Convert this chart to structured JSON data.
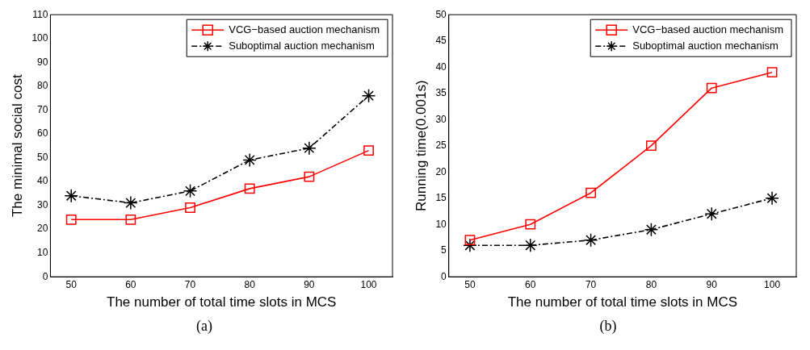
{
  "chart_data": [
    {
      "type": "line",
      "xlabel": "The number of total time slots in MCS",
      "ylabel": "The minimal social cost",
      "x": [
        50,
        60,
        70,
        80,
        90,
        100
      ],
      "xlim": [
        46.5,
        104
      ],
      "xticks": [
        50,
        60,
        70,
        80,
        90,
        100
      ],
      "ylim": [
        0,
        110
      ],
      "yticks": [
        0,
        10,
        20,
        30,
        40,
        50,
        60,
        70,
        80,
        90,
        100,
        110
      ],
      "legend": "top right",
      "grid": false,
      "annotations": [
        "(a)"
      ],
      "series": [
        {
          "name": "VCG−based auction mechanism",
          "color": "#ff0000",
          "marker": "square",
          "line_style": "solid",
          "values": [
            24,
            24,
            29,
            37,
            42,
            53
          ]
        },
        {
          "name": "Suboptimal auction mechanism",
          "color": "#000000",
          "marker": "cross",
          "line_style": "dashed",
          "values": [
            34,
            31,
            36,
            49,
            54,
            76
          ]
        }
      ]
    },
    {
      "type": "line",
      "xlabel": "The number of total time slots in MCS",
      "ylabel": "Running time(0.001s)",
      "x": [
        50,
        60,
        70,
        80,
        90,
        100
      ],
      "xlim": [
        46.5,
        104
      ],
      "xticks": [
        50,
        60,
        70,
        80,
        90,
        100
      ],
      "ylim": [
        0,
        50
      ],
      "yticks": [
        0,
        5,
        10,
        15,
        20,
        25,
        30,
        35,
        40,
        45,
        50
      ],
      "legend": "top right",
      "grid": false,
      "annotations": [
        "(b)"
      ],
      "series": [
        {
          "name": "VCG−based auction mechanism",
          "color": "#ff0000",
          "marker": "square",
          "line_style": "solid",
          "values": [
            7,
            10,
            16,
            25,
            36,
            39
          ]
        },
        {
          "name": "Suboptimal auction mechanism",
          "color": "#000000",
          "marker": "cross",
          "line_style": "dashed",
          "values": [
            6,
            6,
            7,
            9,
            12,
            15
          ]
        }
      ]
    }
  ]
}
